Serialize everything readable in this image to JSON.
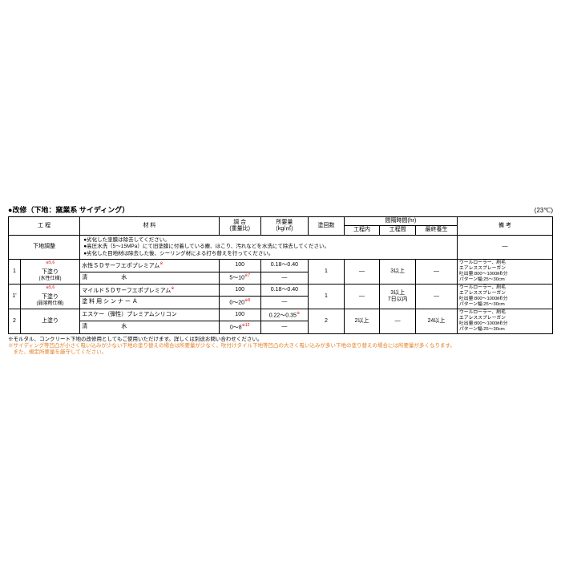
{
  "title": "●改修（下地：窯業系 サイディング）",
  "temp": "(23℃)",
  "headers": {
    "process": "工 程",
    "material": "材 料",
    "mix": "調 合\n(重量比)",
    "amount": "所要量\n(kg/㎡)",
    "count": "塗回数",
    "interval": "間隔時間(hr)",
    "t_in": "工程内",
    "t_between": "工程間",
    "t_cure": "最終養生",
    "remarks": "備 考"
  },
  "prep": {
    "label": "下地調整",
    "text": "●劣化した塗膜は除去してください。\n●高圧水洗（5～15MPa）にて旧塗膜に付着している塵、ほこり、汚れなどを水洗にて除去してください。\n●劣化した目地材は除去した後、シーリング材による打ち替えを行ってください。",
    "dash": "—"
  },
  "rows": [
    {
      "num": "1",
      "proc": "下塗り",
      "proc_sub": "(水性仕様)",
      "sup": "※5,6",
      "mat1": "水性ＳＤサーフエポプレミアム",
      "mat1_sup": "※",
      "mix1": "100",
      "amt1": "0.18～0.40",
      "mat2": "清　　　　　　水",
      "mix2": "5～10",
      "mix2_sup": "※7",
      "amt2": "—",
      "count": "1",
      "t_in": "—",
      "t_between": "3以上",
      "t_cure": "—",
      "rem": "ウールローラー、刷毛\nエアレススプレーガン\n吐出量:800～1000㎖/分\nパターン幅:25～30cm"
    },
    {
      "num": "1'",
      "proc": "下塗り",
      "proc_sub": "(弱溶剤仕様)",
      "sup": "※5,6",
      "mat1": "マイルドＳＤサーフエポプレミアム",
      "mat1_sup": "※",
      "mix1": "100",
      "amt1": "0.18～0.40",
      "mat2": "塗 料 用 シ ン ナ ー Ａ",
      "mix2": "0～20",
      "mix2_sup": "※8",
      "amt2": "—",
      "count": "1",
      "t_in": "—",
      "t_between": "3以上\n7日以内",
      "t_cure": "—",
      "rem": "ウールローラー、刷毛\nエアレススプレーガン\n吐出量:800～1000㎖/分\nパターン幅:25～30cm"
    },
    {
      "num": "2",
      "proc": "上塗り",
      "mat1": "エスケー（弾性）プレミアムシリコン",
      "mix1": "100",
      "amt1": "0.22～0.35",
      "amt1_sup": "※",
      "mat2": "清　　　　　　水",
      "mix2": "0～8",
      "mix2_sup": "※12",
      "amt2": "—",
      "count": "2",
      "t_in": "2以上",
      "t_between": "—",
      "t_cure": "24以上",
      "rem": "ウールローラー、刷毛\nエアレススプレーガン\n吐出量:800～1000㎖/分\nパターン幅:25～30cm"
    }
  ],
  "footnotes": {
    "f1": "※モルタル、コンクリート下地の改修用としてもご使用いただけます。詳しくは別途お問い合わせください。",
    "f2": "※サイディング等凹凸が小さく吸い込みが少ない下地の塗り替えの場合は所要量が少なく、吹付けタイル下地等凹凸の大きく吸い込みが多い下地の塗り替えの場合には所要量が多くなります。\n　また、規定所要量を厳守してください。"
  }
}
